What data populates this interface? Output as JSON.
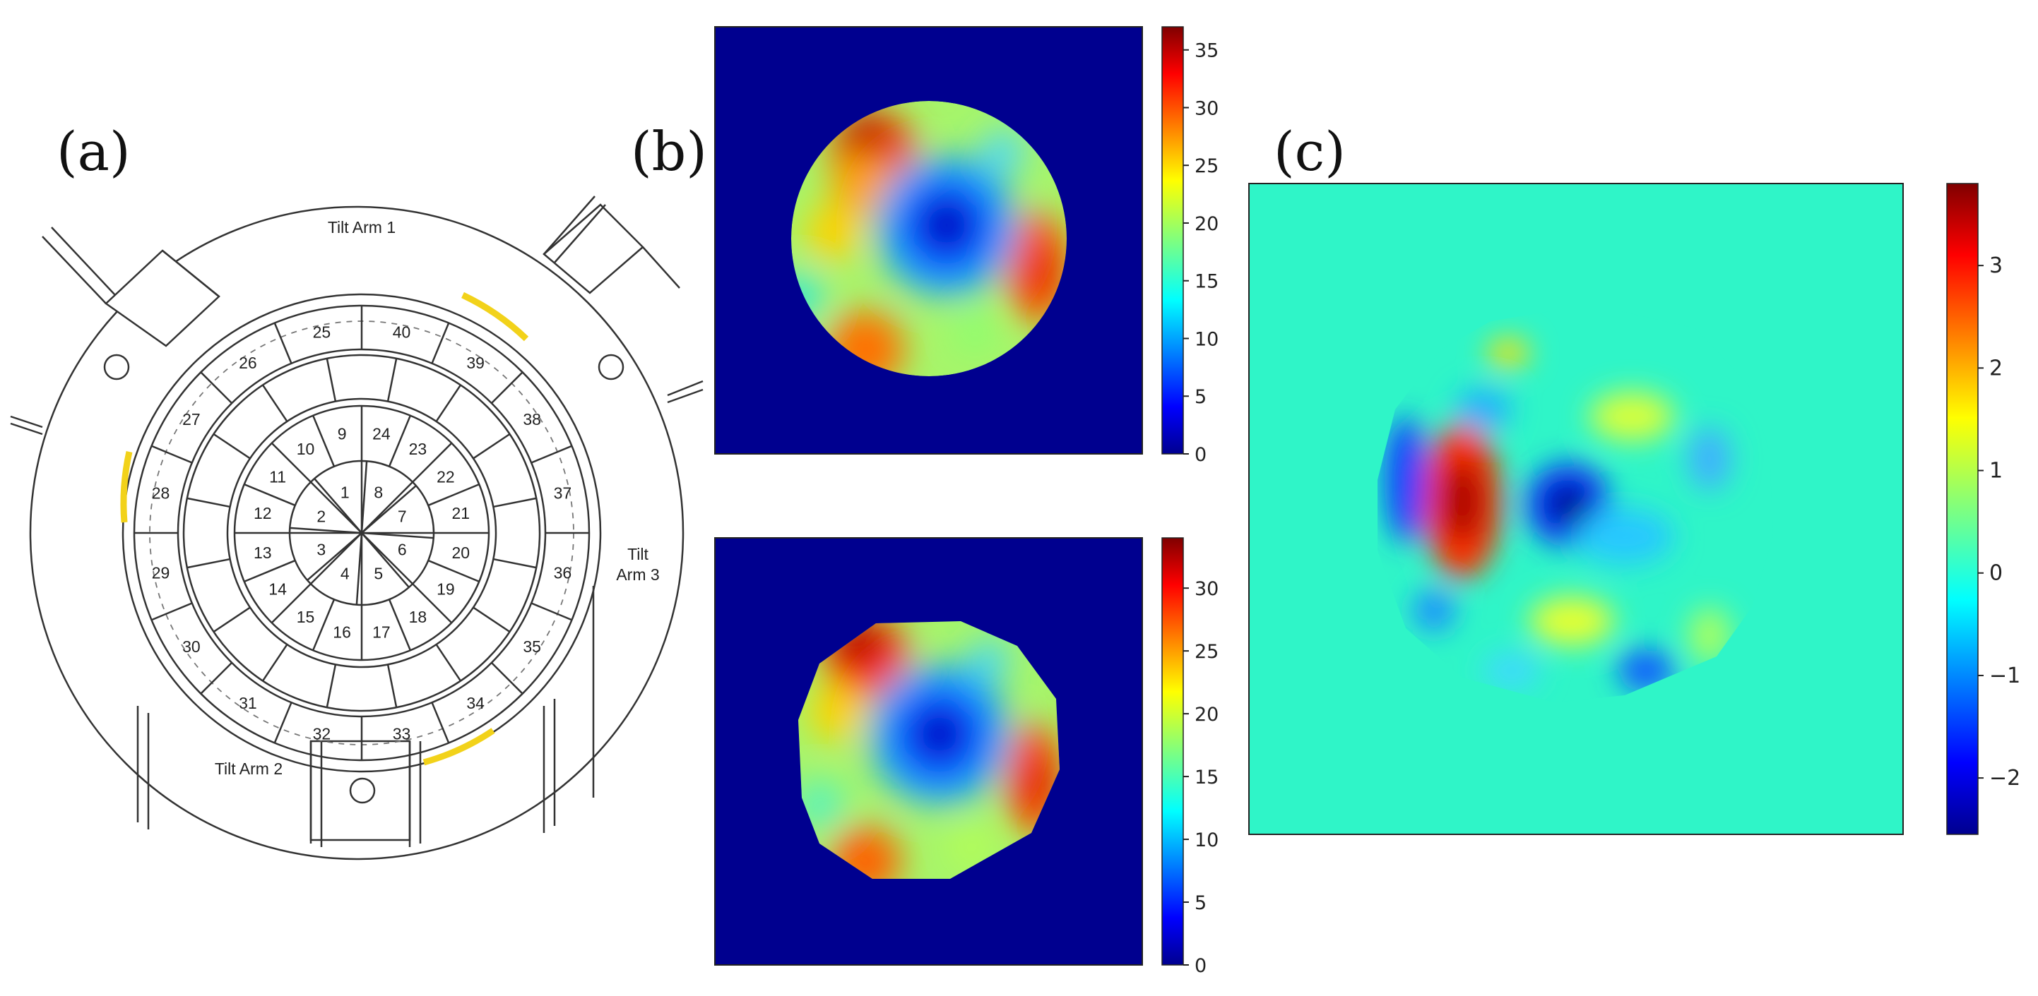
{
  "panels": {
    "a": {
      "label": "(a)"
    },
    "b": {
      "label": "(b)"
    },
    "c": {
      "label": "(c)"
    }
  },
  "diagram_a": {
    "arms": [
      "Tilt Arm 1",
      "Tilt Arm 2",
      "Tilt",
      "Arm 3"
    ],
    "segments": {
      "ring1": [
        "8",
        "7",
        "6",
        "5",
        "4",
        "3",
        "2",
        "1"
      ],
      "ring2": [
        "24",
        "23",
        "22",
        "21",
        "20",
        "19",
        "18",
        "17",
        "16",
        "15",
        "14",
        "13",
        "12",
        "11",
        "10",
        "9"
      ],
      "ring3": [
        "40",
        "39",
        "38",
        "37",
        "36",
        "35",
        "34",
        "33",
        "32",
        "31",
        "30",
        "29",
        "28",
        "27",
        "26",
        "25"
      ]
    },
    "highlight_color": "#f2d21a"
  },
  "colorbars": {
    "b_top": {
      "ticks": [
        "0",
        "5",
        "10",
        "15",
        "20",
        "25",
        "30",
        "35"
      ]
    },
    "b_bottom": {
      "ticks": [
        "0",
        "5",
        "10",
        "15",
        "20",
        "25",
        "30"
      ]
    },
    "c": {
      "ticks": [
        "3",
        "2",
        "1",
        "0",
        "−1",
        "−2"
      ]
    }
  },
  "colors": {
    "background_dark": "#00008f",
    "background_diff": "#2ff5c8",
    "colormap": "jet"
  }
}
